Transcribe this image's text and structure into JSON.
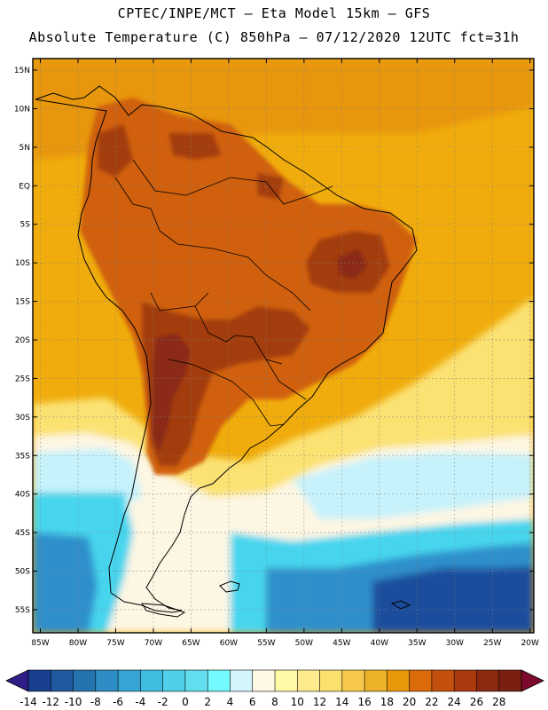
{
  "header": {
    "line1": "CPTEC/INPE/MCT –  Eta Model 15km – GFS",
    "line2": "Absolute Temperature (C) 850hPa – 07/12/2020 12UTC fct=31h"
  },
  "map": {
    "extent": {
      "lon_min": -86,
      "lon_max": -19.5,
      "lat_min": -58,
      "lat_max": 16.5
    },
    "lat_labels": [
      {
        "lat": 15,
        "label": "15N"
      },
      {
        "lat": 10,
        "label": "10N"
      },
      {
        "lat": 5,
        "label": "5N"
      },
      {
        "lat": 0,
        "label": "EQ"
      },
      {
        "lat": -5,
        "label": "5S"
      },
      {
        "lat": -10,
        "label": "10S"
      },
      {
        "lat": -15,
        "label": "15S"
      },
      {
        "lat": -20,
        "label": "20S"
      },
      {
        "lat": -25,
        "label": "25S"
      },
      {
        "lat": -30,
        "label": "30S"
      },
      {
        "lat": -35,
        "label": "35S"
      },
      {
        "lat": -40,
        "label": "40S"
      },
      {
        "lat": -45,
        "label": "45S"
      },
      {
        "lat": -50,
        "label": "50S"
      },
      {
        "lat": -55,
        "label": "55S"
      }
    ],
    "lon_labels": [
      {
        "lon": -85,
        "label": "85W"
      },
      {
        "lon": -80,
        "label": "80W"
      },
      {
        "lon": -75,
        "label": "75W"
      },
      {
        "lon": -70,
        "label": "70W"
      },
      {
        "lon": -65,
        "label": "65W"
      },
      {
        "lon": -60,
        "label": "60W"
      },
      {
        "lon": -55,
        "label": "55W"
      },
      {
        "lon": -50,
        "label": "50W"
      },
      {
        "lon": -45,
        "label": "45W"
      },
      {
        "lon": -40,
        "label": "40W"
      },
      {
        "lon": -35,
        "label": "35W"
      },
      {
        "lon": -30,
        "label": "30W"
      },
      {
        "lon": -25,
        "label": "25W"
      },
      {
        "lon": -20,
        "label": "20W"
      }
    ]
  },
  "colorbar": {
    "unit": "C",
    "labels": [
      "-14",
      "-12",
      "-10",
      "-8",
      "-6",
      "-4",
      "-2",
      "0",
      "2",
      "4",
      "6",
      "8",
      "10",
      "12",
      "14",
      "16",
      "18",
      "20",
      "22",
      "24",
      "26",
      "28"
    ],
    "colors": [
      "#1a3f8f",
      "#1f5a9e",
      "#2574b0",
      "#2d8dc4",
      "#35a5d4",
      "#3fbde0",
      "#4fd0e8",
      "#63def0",
      "#72fafe",
      "#d2f6fc",
      "#fff8e6",
      "#fffaa6",
      "#fdeb8e",
      "#fbdf6f",
      "#f6c94b",
      "#eeb12a",
      "#e9970a",
      "#db6a0a",
      "#c4500d",
      "#aa3a0e",
      "#8b2a10",
      "#7a2010"
    ],
    "under_color": "#2e1f88",
    "over_color": "#7d0a2c"
  },
  "palette": {
    "ocean_base": "#f0ac0c",
    "tropics_warm": "#e7960a",
    "land_warm": "#d0600f",
    "land_hot": "#a43d10",
    "land_hottest": "#8b2c12",
    "cool_yellow": "#fbe273",
    "pale": "#fdf6e3",
    "cyan_light": "#c6f2fb",
    "cyan": "#46d5ee",
    "blue_mid": "#2e8fcb",
    "blue_dark": "#1d4e9d",
    "coastline": "#000000",
    "grid": "#7f7f7f"
  }
}
